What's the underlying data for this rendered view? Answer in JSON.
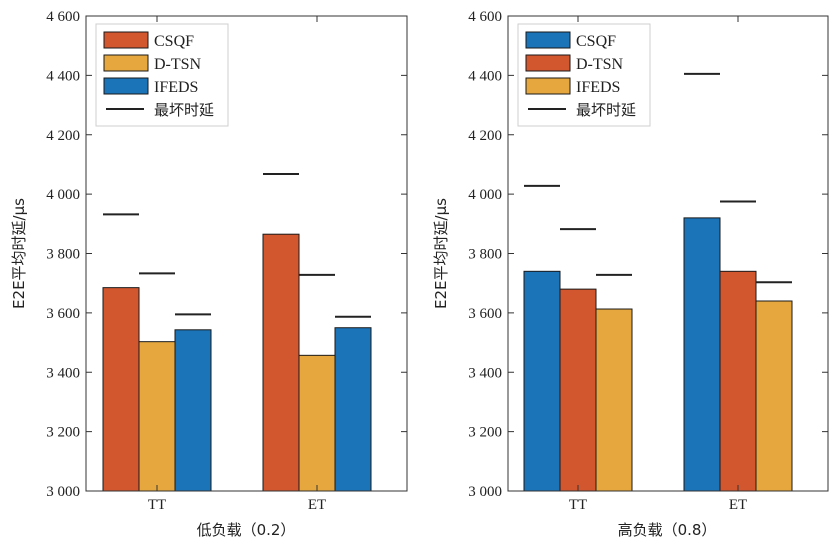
{
  "chart_data": [
    {
      "type": "bar",
      "title": "",
      "xlabel": "低负载（0.2）",
      "ylabel": "E2E平均时延/μs",
      "ylim": [
        3000,
        4600
      ],
      "yticks": [
        3000,
        3200,
        3400,
        3600,
        3800,
        4000,
        4200,
        4400,
        4600
      ],
      "ytick_labels": [
        "3 000",
        "3 200",
        "3 400",
        "3 600",
        "3 800",
        "4 000",
        "4 200",
        "4 400",
        "4 600"
      ],
      "categories": [
        "TT",
        "ET"
      ],
      "series": [
        {
          "name": "CSQF",
          "color": "#D2572F",
          "values": [
            3685,
            3865
          ],
          "worst": [
            3932,
            4068
          ]
        },
        {
          "name": "D-TSN",
          "color": "#E6A83E",
          "values": [
            3503,
            3457
          ],
          "worst": [
            3733,
            3728
          ]
        },
        {
          "name": "IFEDS",
          "color": "#1B73B8",
          "values": [
            3543,
            3550
          ],
          "worst": [
            3595,
            3587
          ]
        }
      ],
      "worst_legend": "最坏时延",
      "legend_position": "top-left",
      "grid": false
    },
    {
      "type": "bar",
      "title": "",
      "xlabel": "高负载（0.8）",
      "ylabel": "E2E平均时延/μs",
      "ylim": [
        3000,
        4600
      ],
      "yticks": [
        3000,
        3200,
        3400,
        3600,
        3800,
        4000,
        4200,
        4400,
        4600
      ],
      "ytick_labels": [
        "3 000",
        "3 200",
        "3 400",
        "3 600",
        "3 800",
        "4 000",
        "4 200",
        "4 400",
        "4 600"
      ],
      "categories": [
        "TT",
        "ET"
      ],
      "series": [
        {
          "name": "CSQF",
          "color": "#1B73B8",
          "values": [
            3740,
            3920
          ],
          "worst": [
            4028,
            4405
          ]
        },
        {
          "name": "D-TSN",
          "color": "#D2572F",
          "values": [
            3680,
            3740
          ],
          "worst": [
            3882,
            3975
          ]
        },
        {
          "name": "IFEDS",
          "color": "#E6A83E",
          "values": [
            3613,
            3640
          ],
          "worst": [
            3728,
            3703
          ]
        }
      ],
      "worst_legend": "最坏时延",
      "legend_position": "top-left",
      "grid": false
    }
  ]
}
